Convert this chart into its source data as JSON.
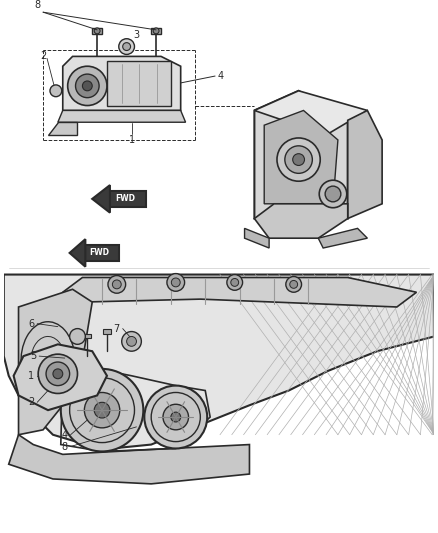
{
  "bg_color": "#ffffff",
  "line_color": "#2a2a2a",
  "light_line": "#888888",
  "fig_width": 4.38,
  "fig_height": 5.33,
  "dpi": 100
}
